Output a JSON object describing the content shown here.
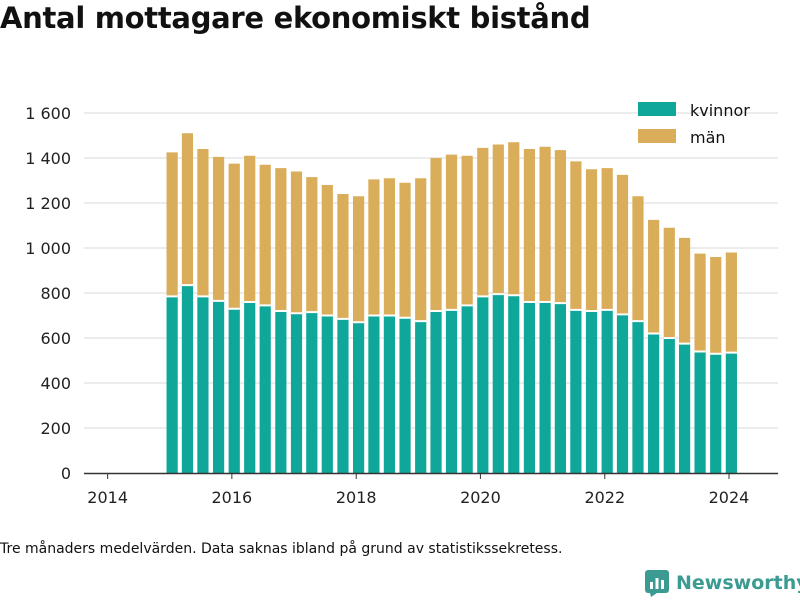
{
  "title": "Antal mottagare ekonomiskt bistånd",
  "footnote": "Tre månaders medelvärden. Data saknas ibland på grund av statistikssekretess.",
  "brand": {
    "name": "Newsworthy",
    "icon": "newsworthy-logo-icon",
    "color": "#3b9a92"
  },
  "colors": {
    "kvinnor": "#0fa79a",
    "man": "#d9ad5a",
    "grid": "#d9d9d9",
    "axis": "#333333"
  },
  "chart_data": {
    "type": "bar",
    "stacked": true,
    "grid": true,
    "legend_position": "top-right",
    "xlim": [
      "2013-08-15",
      "2024-10-15"
    ],
    "ylim": [
      0,
      1600
    ],
    "x_ticks": [
      "2014",
      "2016",
      "2018",
      "2020",
      "2022",
      "2024"
    ],
    "x_tick_dates": [
      "2014-01-01",
      "2016-01-01",
      "2018-01-01",
      "2020-01-01",
      "2022-01-01",
      "2024-01-01"
    ],
    "y_ticks": [
      0,
      200,
      400,
      600,
      800,
      1000,
      1200,
      1400,
      1600
    ],
    "y_tick_labels": [
      "0",
      "200",
      "400",
      "600",
      "800",
      "1 000",
      "1 200",
      "1 400",
      "1 600"
    ],
    "dates": [
      "2015-01",
      "2015-04",
      "2015-07",
      "2015-10",
      "2016-01",
      "2016-04",
      "2016-07",
      "2016-10",
      "2017-01",
      "2017-04",
      "2017-07",
      "2017-10",
      "2018-01",
      "2018-04",
      "2018-07",
      "2018-10",
      "2019-01",
      "2019-04",
      "2019-07",
      "2019-10",
      "2020-01",
      "2020-04",
      "2020-07",
      "2020-10",
      "2021-01",
      "2021-04",
      "2021-07",
      "2021-10",
      "2022-01",
      "2022-04",
      "2022-07",
      "2022-10",
      "2023-01",
      "2023-04",
      "2023-07",
      "2023-10",
      "2024-01"
    ],
    "series": [
      {
        "name": "kvinnor",
        "color": "#0fa79a",
        "values": [
          785,
          835,
          785,
          765,
          730,
          760,
          745,
          720,
          710,
          715,
          700,
          685,
          670,
          700,
          700,
          690,
          675,
          720,
          725,
          745,
          785,
          795,
          790,
          760,
          760,
          755,
          725,
          720,
          725,
          705,
          675,
          620,
          600,
          575,
          540,
          530,
          535
        ]
      },
      {
        "name": "män",
        "color": "#d9ad5a",
        "values": [
          640,
          675,
          655,
          640,
          645,
          650,
          625,
          635,
          630,
          600,
          580,
          555,
          560,
          605,
          610,
          600,
          635,
          680,
          690,
          665,
          660,
          665,
          680,
          680,
          690,
          680,
          660,
          630,
          630,
          620,
          555,
          505,
          490,
          470,
          435,
          430,
          445
        ]
      }
    ]
  }
}
